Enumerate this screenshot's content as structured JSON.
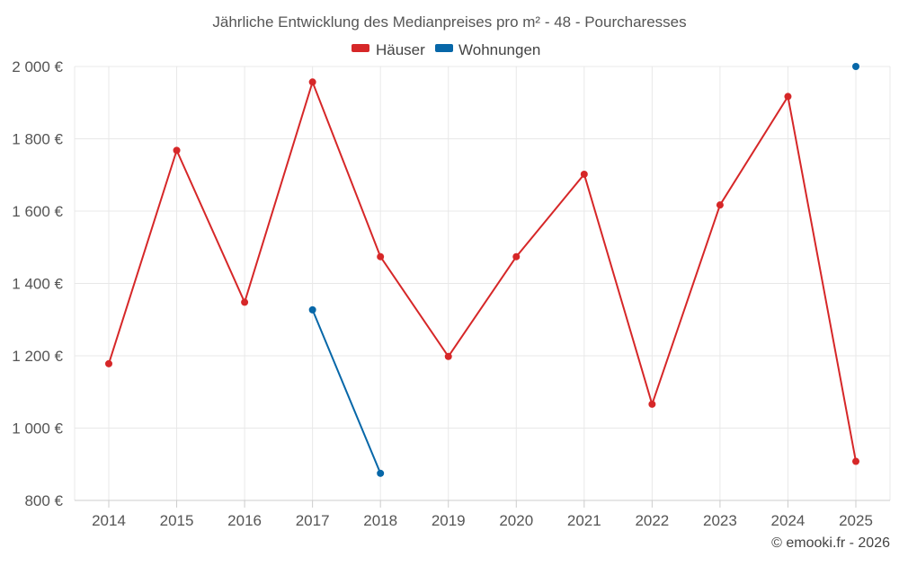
{
  "chart_data": {
    "type": "line",
    "title": "Jährliche Entwicklung des Medianpreises pro m² - 48 - Pourcharesses",
    "categories": [
      "2014",
      "2015",
      "2016",
      "2017",
      "2018",
      "2019",
      "2020",
      "2021",
      "2022",
      "2023",
      "2024",
      "2025"
    ],
    "series": [
      {
        "name": "Häuser",
        "color": "#d62728",
        "values": [
          1178,
          1768,
          1348,
          1957,
          1474,
          1198,
          1474,
          1702,
          1066,
          1617,
          1917,
          908
        ]
      },
      {
        "name": "Wohnungen",
        "color": "#0767a8",
        "values": [
          null,
          null,
          null,
          1327,
          875,
          null,
          null,
          null,
          null,
          null,
          null,
          2000
        ]
      }
    ],
    "ylim": [
      800,
      2000
    ],
    "yticks": [
      800,
      1000,
      1200,
      1400,
      1600,
      1800,
      2000
    ],
    "ytick_labels": [
      "800 €",
      "1 000 €",
      "1 200 €",
      "1 400 €",
      "1 600 €",
      "1 800 €",
      "2 000 €"
    ],
    "grid": true,
    "legend_position": "top-center"
  },
  "credit": "© emooki.fr - 2026"
}
